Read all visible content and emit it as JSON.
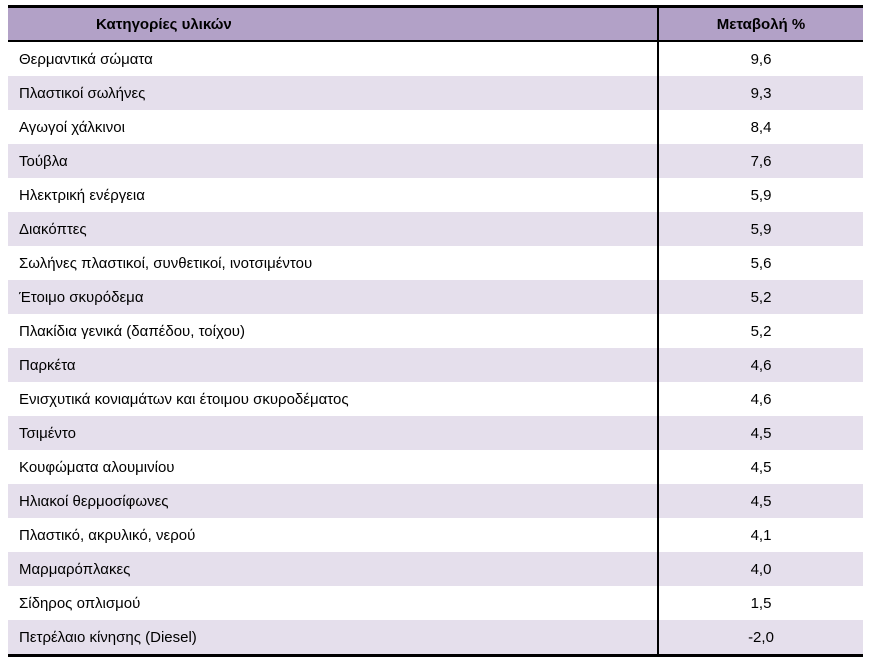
{
  "table": {
    "headers": [
      "Κατηγορίες υλικών",
      "Μεταβολή %"
    ],
    "rows": [
      {
        "category": "Θερμαντικά σώματα",
        "change": "9,6"
      },
      {
        "category": "Πλαστικοί σωλήνες",
        "change": "9,3"
      },
      {
        "category": "Αγωγοί χάλκινοι",
        "change": "8,4"
      },
      {
        "category": "Τούβλα",
        "change": "7,6"
      },
      {
        "category": "Ηλεκτρική ενέργεια",
        "change": "5,9"
      },
      {
        "category": "Διακόπτες",
        "change": "5,9"
      },
      {
        "category": "Σωλήνες πλαστικοί, συνθετικοί, ινοτσιμέντου",
        "change": "5,6"
      },
      {
        "category": "Έτοιμο σκυρόδεμα",
        "change": "5,2"
      },
      {
        "category": "Πλακίδια γενικά (δαπέδου, τοίχου)",
        "change": "5,2"
      },
      {
        "category": "Παρκέτα",
        "change": "4,6"
      },
      {
        "category": "Ενισχυτικά κονιαμάτων και έτοιμου σκυροδέματος",
        "change": "4,6"
      },
      {
        "category": "Τσιμέντο",
        "change": "4,5"
      },
      {
        "category": "Κουφώματα αλουμινίου",
        "change": "4,5"
      },
      {
        "category": "Ηλιακοί θερμοσίφωνες",
        "change": "4,5"
      },
      {
        "category": "Πλαστικό, ακρυλικό, νερού",
        "change": "4,1"
      },
      {
        "category": "Μαρμαρόπλακες",
        "change": "4,0"
      },
      {
        "category": "Σίδηρος οπλισμού",
        "change": "1,5"
      },
      {
        "category": "Πετρέλαιο κίνησης (Diesel)",
        "change": "-2,0"
      }
    ]
  },
  "colors": {
    "header_bg": "#B2A1C7",
    "alt_row_bg": "#E5DFEC",
    "border": "#000000"
  },
  "chart_data": {
    "type": "table",
    "title": "",
    "columns": [
      "Κατηγορίες υλικών",
      "Μεταβολή %"
    ],
    "categories": [
      "Θερμαντικά σώματα",
      "Πλαστικοί σωλήνες",
      "Αγωγοί χάλκινοι",
      "Τούβλα",
      "Ηλεκτρική ενέργεια",
      "Διακόπτες",
      "Σωλήνες πλαστικοί, συνθετικοί, ινοτσιμέντου",
      "Έτοιμο σκυρόδεμα",
      "Πλακίδια γενικά (δαπέδου, τοίχου)",
      "Παρκέτα",
      "Ενισχυτικά κονιαμάτων και έτοιμου σκυροδέματος",
      "Τσιμέντο",
      "Κουφώματα αλουμινίου",
      "Ηλιακοί θερμοσίφωνες",
      "Πλαστικό, ακρυλικό, νερού",
      "Μαρμαρόπλακες",
      "Σίδηρος οπλισμού",
      "Πετρέλαιο κίνησης (Diesel)"
    ],
    "values": [
      9.6,
      9.3,
      8.4,
      7.6,
      5.9,
      5.9,
      5.6,
      5.2,
      5.2,
      4.6,
      4.6,
      4.5,
      4.5,
      4.5,
      4.1,
      4.0,
      1.5,
      -2.0
    ]
  }
}
